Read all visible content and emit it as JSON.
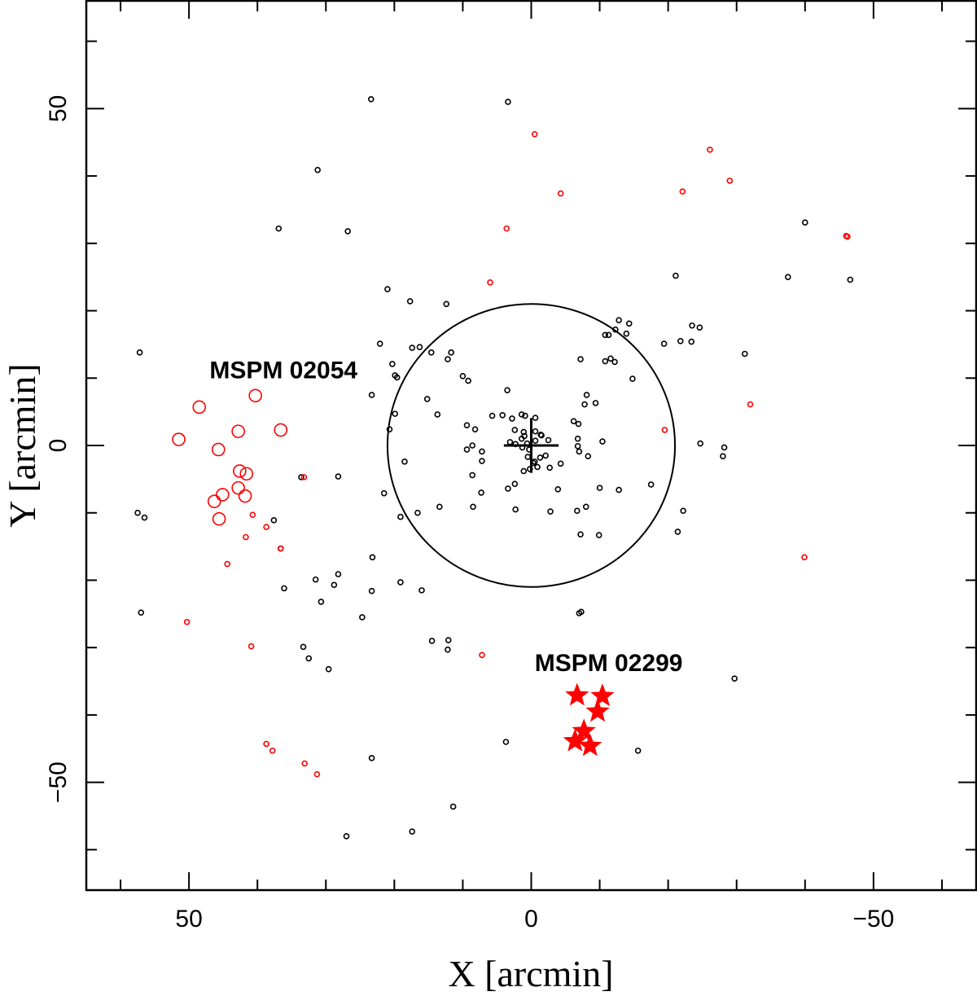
{
  "chart_data": {
    "type": "scatter",
    "xlabel": "X [arcmin]",
    "ylabel": "Y [arcmin]",
    "xlim": [
      65,
      -65
    ],
    "ylim": [
      -66,
      66
    ],
    "x_ticks": [
      50,
      0,
      -50
    ],
    "y_ticks": [
      50,
      0,
      -50
    ],
    "grid": false,
    "colors": {
      "field": "#000000",
      "member": "#ff0000"
    },
    "series": [
      {
        "marker": "small-open-circle",
        "color": "#000000",
        "points": [
          [
            23.4,
            51.4
          ],
          [
            3.4,
            51.0
          ],
          [
            31.2,
            40.9
          ],
          [
            36.9,
            32.2
          ],
          [
            26.8,
            31.8
          ],
          [
            -40.0,
            33.1
          ],
          [
            -21.1,
            25.2
          ],
          [
            -37.5,
            25.0
          ],
          [
            -46.6,
            24.6
          ],
          [
            21.0,
            23.2
          ],
          [
            17.7,
            21.4
          ],
          [
            12.4,
            21.0
          ],
          [
            -12.8,
            18.6
          ],
          [
            -14.3,
            18.1
          ],
          [
            -12.3,
            17.2
          ],
          [
            -13.9,
            16.6
          ],
          [
            -11.3,
            16.4
          ],
          [
            -10.8,
            16.4
          ],
          [
            -23.5,
            17.8
          ],
          [
            -24.6,
            17.5
          ],
          [
            -21.8,
            15.5
          ],
          [
            22.1,
            15.1
          ],
          [
            17.4,
            14.5
          ],
          [
            16.3,
            14.6
          ],
          [
            -23.4,
            15.4
          ],
          [
            -19.4,
            15.1
          ],
          [
            14.6,
            13.8
          ],
          [
            -31.2,
            13.6
          ],
          [
            11.7,
            13.8
          ],
          [
            12.2,
            12.8
          ],
          [
            -7.2,
            12.8
          ],
          [
            -11.6,
            12.9
          ],
          [
            -12.2,
            12.4
          ],
          [
            -10.8,
            12.5
          ],
          [
            20.3,
            12.1
          ],
          [
            19.9,
            10.4
          ],
          [
            19.6,
            10.1
          ],
          [
            10.0,
            10.3
          ],
          [
            9.2,
            9.6
          ],
          [
            -14.8,
            9.9
          ],
          [
            23.3,
            7.5
          ],
          [
            -8.1,
            7.5
          ],
          [
            15.2,
            6.9
          ],
          [
            3.5,
            8.2
          ],
          [
            -7.8,
            6.1
          ],
          [
            -9.4,
            6.3
          ],
          [
            19.9,
            4.7
          ],
          [
            13.7,
            4.6
          ],
          [
            5.7,
            4.4
          ],
          [
            4.2,
            4.5
          ],
          [
            2.8,
            4.0
          ],
          [
            1.4,
            4.6
          ],
          [
            0.9,
            4.4
          ],
          [
            -0.6,
            4.1
          ],
          [
            -6.2,
            3.6
          ],
          [
            -6.9,
            3.2
          ],
          [
            9.4,
            3.0
          ],
          [
            8.2,
            2.4
          ],
          [
            2.4,
            2.3
          ],
          [
            1.1,
            2.0
          ],
          [
            -0.6,
            2.1
          ],
          [
            -1.5,
            1.5
          ],
          [
            -6.8,
            1.0
          ],
          [
            3.1,
            0.5
          ],
          [
            2.3,
            0.2
          ],
          [
            1.4,
            1.0
          ],
          [
            1.0,
            1.4
          ],
          [
            0.6,
            0.3
          ],
          [
            -1.4,
            1.6
          ],
          [
            -2.5,
            0.8
          ],
          [
            -2.1,
            -1.5
          ],
          [
            -1.3,
            -1.8
          ],
          [
            -0.5,
            -2.4
          ],
          [
            -0.3,
            -2.6
          ],
          [
            0.2,
            -3.5
          ],
          [
            -0.9,
            -3.2
          ],
          [
            -2.7,
            -3.3
          ],
          [
            -4.3,
            -2.7
          ],
          [
            -8.3,
            -1.6
          ],
          [
            -10.4,
            0.6
          ],
          [
            -24.7,
            0.3
          ],
          [
            -28.2,
            -0.3
          ],
          [
            -28.0,
            -1.6
          ],
          [
            -0.6,
            0.7
          ],
          [
            1.3,
            -0.3
          ],
          [
            8.6,
            0.0
          ],
          [
            0.3,
            -0.6
          ],
          [
            0.5,
            -1.7
          ],
          [
            -6.8,
            -0.1
          ],
          [
            -7.0,
            -0.9
          ],
          [
            9.4,
            -0.6
          ],
          [
            1.1,
            -3.8
          ],
          [
            7.2,
            -0.9
          ],
          [
            8.6,
            -4.4
          ],
          [
            7.2,
            -2.3
          ],
          [
            20.7,
            2.4
          ],
          [
            33.6,
            -4.7
          ],
          [
            28.2,
            -4.6
          ],
          [
            18.5,
            -2.4
          ],
          [
            2.4,
            -5.7
          ],
          [
            -3.9,
            -6.5
          ],
          [
            -10.0,
            -6.3
          ],
          [
            -12.8,
            -6.6
          ],
          [
            -17.5,
            -5.8
          ],
          [
            7.3,
            -7.0
          ],
          [
            3.4,
            -6.4
          ],
          [
            21.5,
            -7.1
          ],
          [
            13.4,
            -9.1
          ],
          [
            16.6,
            -10.0
          ],
          [
            8.5,
            -9.1
          ],
          [
            2.3,
            -9.5
          ],
          [
            -2.8,
            -9.8
          ],
          [
            -6.7,
            -9.7
          ],
          [
            -8.0,
            -9.1
          ],
          [
            -22.2,
            -9.7
          ],
          [
            -9.9,
            -13.3
          ],
          [
            -7.2,
            -13.2
          ],
          [
            -21.4,
            -12.8
          ],
          [
            19.1,
            -10.6
          ],
          [
            57.5,
            -10.0
          ],
          [
            56.5,
            -10.7
          ],
          [
            37.6,
            -11.1
          ],
          [
            30.7,
            -23.2
          ],
          [
            28.2,
            -19.1
          ],
          [
            23.2,
            -16.6
          ],
          [
            36.1,
            -21.2
          ],
          [
            28.8,
            -20.7
          ],
          [
            36.6,
            -15.3
          ],
          [
            24.7,
            -25.5
          ],
          [
            16.0,
            -21.5
          ],
          [
            31.5,
            -19.9
          ],
          [
            23.3,
            -21.6
          ],
          [
            19.1,
            -20.3
          ],
          [
            -7.3,
            -24.7
          ],
          [
            -7.0,
            -24.9
          ],
          [
            14.5,
            -29.0
          ],
          [
            12.1,
            -28.9
          ],
          [
            12.2,
            -30.3
          ],
          [
            33.3,
            -29.9
          ],
          [
            32.5,
            -31.6
          ],
          [
            29.6,
            -33.2
          ],
          [
            -29.7,
            -34.6
          ],
          [
            3.7,
            -44.0
          ],
          [
            -15.6,
            -45.3
          ],
          [
            23.3,
            -46.4
          ],
          [
            11.4,
            -53.6
          ],
          [
            17.4,
            -57.3
          ],
          [
            57.0,
            -24.8
          ],
          [
            27.0,
            -58.0
          ],
          [
            57.2,
            13.8
          ]
        ]
      },
      {
        "marker": "small-open-circle",
        "color": "#ff0000",
        "points": [
          [
            -0.5,
            46.2
          ],
          [
            -26.1,
            43.9
          ],
          [
            -29.0,
            39.3
          ],
          [
            -22.1,
            37.7
          ],
          [
            -4.3,
            37.4
          ],
          [
            3.6,
            32.2
          ],
          [
            -46.2,
            31.0
          ],
          [
            -46.0,
            31.1
          ],
          [
            6.0,
            24.2
          ],
          [
            -32.0,
            6.1
          ],
          [
            -19.5,
            2.3
          ],
          [
            -39.9,
            -16.6
          ],
          [
            33.2,
            -4.7
          ],
          [
            40.7,
            -10.3
          ],
          [
            38.7,
            -12.1
          ],
          [
            41.7,
            -13.6
          ],
          [
            36.6,
            -15.3
          ],
          [
            44.4,
            -17.6
          ],
          [
            50.3,
            -26.2
          ],
          [
            40.9,
            -29.8
          ],
          [
            7.2,
            -31.1
          ],
          [
            38.7,
            -44.3
          ],
          [
            37.8,
            -45.3
          ],
          [
            33.1,
            -47.2
          ],
          [
            31.3,
            -48.8
          ]
        ]
      },
      {
        "marker": "large-open-circle",
        "color": "#ff0000",
        "points": [
          [
            40.3,
            7.4
          ],
          [
            48.5,
            5.7
          ],
          [
            36.6,
            2.3
          ],
          [
            51.5,
            0.9
          ],
          [
            42.8,
            2.1
          ],
          [
            45.7,
            -0.6
          ],
          [
            42.6,
            -3.8
          ],
          [
            41.6,
            -4.2
          ],
          [
            42.8,
            -6.3
          ],
          [
            41.8,
            -7.5
          ],
          [
            45.1,
            -7.3
          ],
          [
            46.3,
            -8.3
          ],
          [
            45.6,
            -10.9
          ]
        ]
      },
      {
        "marker": "filled-star",
        "color": "#ff0000",
        "points": [
          [
            -6.7,
            -37.1
          ],
          [
            -10.4,
            -37.2
          ],
          [
            -9.7,
            -39.5
          ],
          [
            -7.7,
            -42.4
          ],
          [
            -6.4,
            -43.9
          ],
          [
            -8.6,
            -44.6
          ]
        ]
      }
    ],
    "overlays": [
      {
        "type": "circle",
        "center": [
          0,
          0
        ],
        "radius": 21
      },
      {
        "type": "cross",
        "center": [
          0,
          0
        ],
        "half_length": 4
      }
    ],
    "annotations": [
      {
        "text": "MSPM 02054",
        "x": 47,
        "y": 10
      },
      {
        "text": "MSPM 02299",
        "x": -0.5,
        "y": -33.5
      }
    ]
  }
}
